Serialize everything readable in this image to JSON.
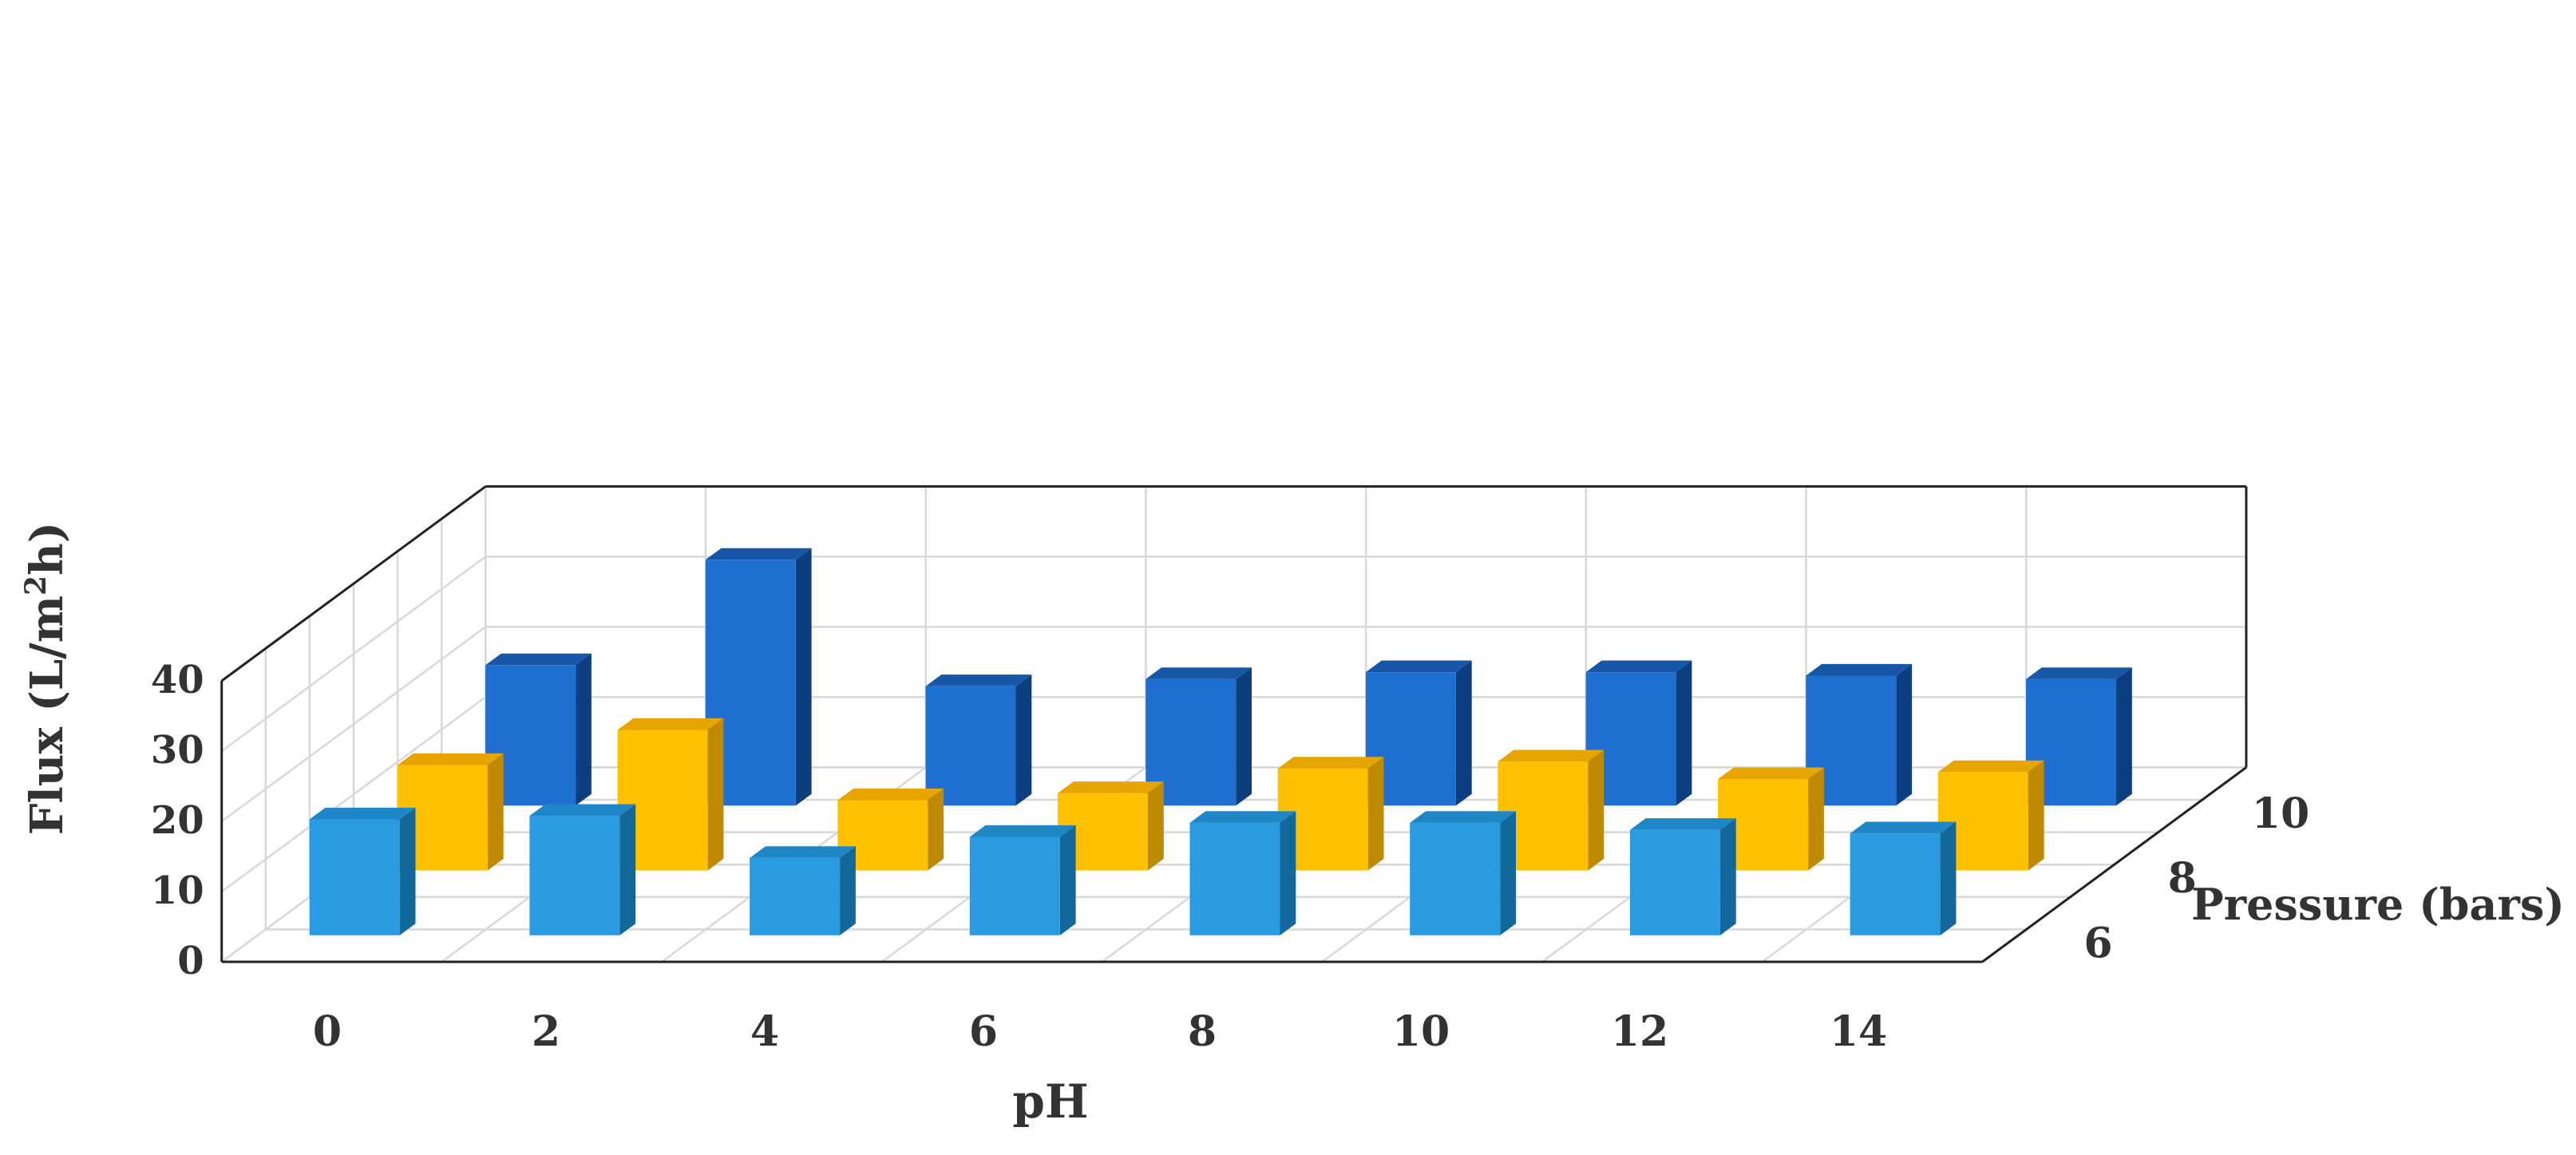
{
  "chart_data": {
    "type": "bar",
    "title": "",
    "xlabel": "pH",
    "ylabel": "Flux (L/m",
    "ylabel_sup": "2",
    "ylabel_end": "h)",
    "zlabel": "Pressure (bars)",
    "ylim": [
      0,
      40
    ],
    "y_ticks": [
      "0",
      "10",
      "20",
      "30",
      "40"
    ],
    "categories": [
      "0",
      "2",
      "4",
      "6",
      "8",
      "10",
      "12",
      "14"
    ],
    "grid": true,
    "series": [
      {
        "label": "6",
        "front_color": "#2a9be0",
        "side_color": "#12689a",
        "top_color": "#1f87c8",
        "values": [
          16.5,
          17,
          11,
          14,
          16,
          16,
          15,
          14.5
        ]
      },
      {
        "label": "8",
        "front_color": "#ffc000",
        "side_color": "#c08a00",
        "top_color": "#e6a500",
        "values": [
          15,
          20,
          10,
          11,
          14.5,
          15.5,
          13,
          14
        ]
      },
      {
        "label": "10",
        "front_color": "#1f6fd0",
        "side_color": "#0d3f80",
        "top_color": "#1856a8",
        "values": [
          20,
          35,
          17,
          18,
          19,
          19,
          18.5,
          18
        ]
      }
    ]
  }
}
